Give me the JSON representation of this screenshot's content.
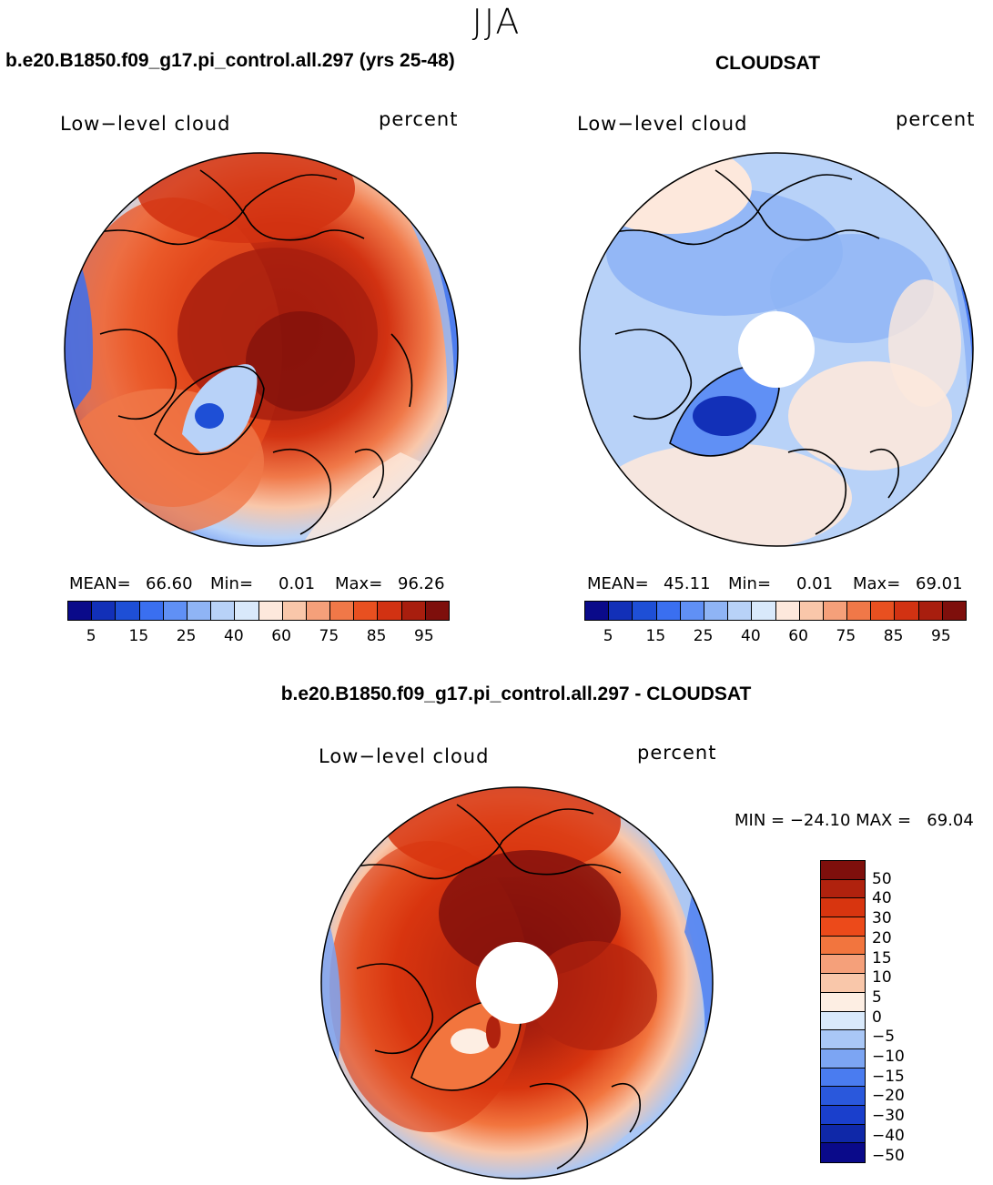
{
  "figure": {
    "season": "JJA",
    "panels": [
      {
        "title": "b.e20.B1850.f09_g17.pi_control.all.297 (yrs 25-48)",
        "variable": "Low−level cloud",
        "units": "percent",
        "mean_label": "MEAN=",
        "mean": "66.60",
        "min_label": "Min=",
        "min": "0.01",
        "max_label": "Max=",
        "max": "96.26"
      },
      {
        "title": "CLOUDSAT",
        "variable": "Low−level cloud",
        "units": "percent",
        "mean_label": "MEAN=",
        "mean": "45.11",
        "min_label": "Min=",
        "min": "0.01",
        "max_label": "Max=",
        "max": "69.01"
      }
    ],
    "diff_panel": {
      "title": "b.e20.B1850.f09_g17.pi_control.all.297 - CLOUDSAT",
      "variable": "Low−level cloud",
      "units": "percent",
      "minmax": "MIN = −24.10 MAX =   69.04"
    },
    "abs_colorbar": {
      "colors": [
        "#0a0a8a",
        "#1230b8",
        "#1e4fd6",
        "#3a6ff0",
        "#6090f5",
        "#8fb4f5",
        "#b8d2f8",
        "#d9e9fb",
        "#fde8dc",
        "#f9c7aa",
        "#f5a07a",
        "#f07848",
        "#e85020",
        "#d23212",
        "#a81e0e",
        "#7e0f0c"
      ],
      "tick_labels": [
        "5",
        "15",
        "25",
        "40",
        "60",
        "75",
        "85",
        "95"
      ]
    },
    "diff_colorbar": {
      "colors": [
        "#7e0f0c",
        "#b0220e",
        "#d8350f",
        "#ec4a1a",
        "#f2753e",
        "#f5a07a",
        "#f9c7aa",
        "#fdeee3",
        "#d9e9fb",
        "#a9c7f6",
        "#7ca5f3",
        "#4a7cf0",
        "#2a58dc",
        "#1a3fcc",
        "#0f28a8",
        "#0a0a8a"
      ],
      "tick_labels": [
        "50",
        "40",
        "30",
        "20",
        "15",
        "10",
        "5",
        "0",
        "−5",
        "−10",
        "−15",
        "−20",
        "−30",
        "−40",
        "−50"
      ]
    }
  }
}
